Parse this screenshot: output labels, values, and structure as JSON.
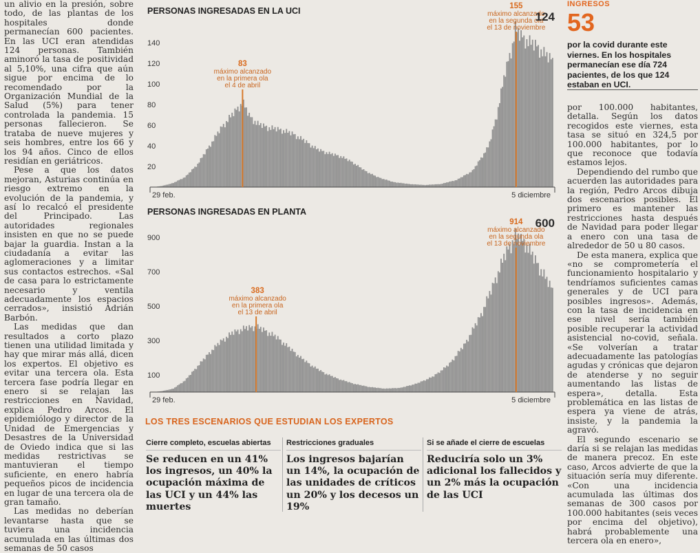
{
  "left_column": {
    "paragraphs": [
      "un alivio en la presión, sobre todo, de las plantas de los hospitales donde permanecían 600 pacientes. En las UCI eran atendidas 124 personas. También aminoró la tasa de positividad al 5,10%, una cifra que aún sigue por encima de lo recomendado por la Organización Mundial de la Salud (5%) para tener controlada la pandemia. 15 personas fallecieron. Se trataba de nueve mujeres y seis hombres, entre los 66 y los 94 años. Cinco de ellos residían en geriátricos.",
      "Pese a que los datos mejoran, Asturias continúa en riesgo extremo en la evolución de la pandemia, y así lo recalcó el presidente del Principado. Las autoridades regionales insisten en que no se puede bajar la guardia. Instan a la ciudadanía a evitar las aglomeraciones y a limitar sus contactos estrechos. «Sal de casa para lo estrictamente necesario y ventila adecuadamente los espacios cerrados», insistió Adrián Barbón.",
      "Las medidas que dan resultados a corto plazo tienen una utilidad limitada y hay que mirar más allá, dicen los expertos. El objetivo es evitar una tercera ola. Esta tercera fase podría llegar en enero si se relajan las restricciones en Navidad, explica Pedro Arcos. El epidemiólogo y director de la Unidad de Emergencias y Desastres de la Universidad de Oviedo indica que si las medidas restrictivas se mantuvieran el tiempo suficiente, en enero habría pequeños picos de incidencia en lugar de una tercera ola de gran tamaño.",
      "Las medidas no deberían levantarse hasta que se tuviera una incidencia acumulada en las últimas dos semanas de 50 casos"
    ]
  },
  "sidebar": {
    "label": "INGRESOS",
    "number": "53",
    "text": "por la covid durante este viernes. En los hospitales permanecían ese día 724 pacientes, de los que 124 estaban en UCI."
  },
  "right_column": {
    "paragraphs": [
      "por 100.000 habitantes, detalla. Según los datos recogidos este viernes, esta tasa se situó en 324,5 por 100.000 habitantes, por lo que reconoce que todavía estamos lejos.",
      "Dependiendo del rumbo que acuerden las autoridades para la región, Pedro Arcos dibuja dos escenarios posibles. El primero es mantener las restricciones hasta después de Navidad para poder llegar a enero con una tasa de alrededor de 50 u 80 casos.",
      "De esta manera, explica que «no se comprometería el funcionamiento hospitalario y tendríamos suficientes camas generales y de UCI para posibles ingresos». Además, con la tasa de incidencia en ese nivel sería también posible recuperar la actividad asistencial no-covid, señala. «Se volverían a tratar adecuadamente las patologías agudas y crónicas que dejaron de atenderse y no seguir aumentando las listas de espera», detalla. Esta problemática en las listas de espera ya viene de atrás, insiste, y la pandemia la agravó.",
      "El segundo escenario se daría si se relajan las medidas de manera precoz. En este caso, Arcos advierte de que la situación sería muy diferente. «Con una incidencia acumulada las últimas dos semanas de 300 casos por 100.000 habitantes (seis veces por encima del objetivo), habrá probablemente una tercera ola en enero»,"
    ]
  },
  "chart_data": [
    {
      "type": "bar",
      "title": "PERSONAS INGRESADAS EN LA UCI",
      "x_start_label": "29 feb.",
      "x_end_label": "5 diciembre",
      "yticks": [
        20,
        40,
        60,
        80,
        100,
        120,
        140
      ],
      "ylim": [
        0,
        160
      ],
      "current_value": "124",
      "peaks": [
        {
          "value": "83",
          "label": [
            "máximo alcanzado",
            "en la primera ola",
            "el 4 de abril"
          ],
          "pos": 0.224
        },
        {
          "value": "155",
          "label": [
            "máximo alcanzado",
            "en la segunda ola",
            "el 13 de noviembre"
          ],
          "pos": 0.907
        }
      ],
      "shape": [
        [
          0,
          0
        ],
        [
          0.02,
          1
        ],
        [
          0.05,
          4
        ],
        [
          0.08,
          10
        ],
        [
          0.11,
          22
        ],
        [
          0.14,
          40
        ],
        [
          0.17,
          58
        ],
        [
          0.2,
          72
        ],
        [
          0.224,
          83
        ],
        [
          0.24,
          70
        ],
        [
          0.26,
          62
        ],
        [
          0.29,
          58
        ],
        [
          0.32,
          56
        ],
        [
          0.35,
          52
        ],
        [
          0.38,
          45
        ],
        [
          0.41,
          37
        ],
        [
          0.44,
          33
        ],
        [
          0.47,
          30
        ],
        [
          0.5,
          24
        ],
        [
          0.53,
          16
        ],
        [
          0.56,
          10
        ],
        [
          0.6,
          5
        ],
        [
          0.64,
          3
        ],
        [
          0.68,
          2
        ],
        [
          0.72,
          3
        ],
        [
          0.76,
          7
        ],
        [
          0.8,
          16
        ],
        [
          0.84,
          40
        ],
        [
          0.86,
          70
        ],
        [
          0.88,
          110
        ],
        [
          0.9,
          140
        ],
        [
          0.907,
          155
        ],
        [
          0.92,
          148
        ],
        [
          0.94,
          142
        ],
        [
          0.96,
          138
        ],
        [
          0.98,
          130
        ],
        [
          1.0,
          124
        ]
      ]
    },
    {
      "type": "bar",
      "title": "PERSONAS INGRESADAS EN PLANTA",
      "x_start_label": "29 feb.",
      "x_end_label": "5 diciembre",
      "yticks": [
        100,
        300,
        500,
        700,
        900
      ],
      "ylim": [
        0,
        960
      ],
      "current_value": "600",
      "peaks": [
        {
          "value": "383",
          "label": [
            "máximo alcanzado",
            "en la primera ola",
            "el 13 de abril"
          ],
          "pos": 0.258
        },
        {
          "value": "914",
          "label": [
            "máximo alcanzado",
            "en la segunda ola",
            "el 13 de noviembre"
          ],
          "pos": 0.907
        }
      ],
      "shape": [
        [
          0,
          0
        ],
        [
          0.02,
          5
        ],
        [
          0.05,
          20
        ],
        [
          0.08,
          70
        ],
        [
          0.11,
          150
        ],
        [
          0.14,
          230
        ],
        [
          0.17,
          300
        ],
        [
          0.2,
          350
        ],
        [
          0.23,
          375
        ],
        [
          0.258,
          383
        ],
        [
          0.28,
          360
        ],
        [
          0.31,
          320
        ],
        [
          0.34,
          260
        ],
        [
          0.37,
          200
        ],
        [
          0.4,
          150
        ],
        [
          0.43,
          110
        ],
        [
          0.46,
          80
        ],
        [
          0.5,
          50
        ],
        [
          0.54,
          30
        ],
        [
          0.58,
          20
        ],
        [
          0.62,
          25
        ],
        [
          0.66,
          50
        ],
        [
          0.7,
          90
        ],
        [
          0.74,
          160
        ],
        [
          0.78,
          280
        ],
        [
          0.82,
          450
        ],
        [
          0.85,
          620
        ],
        [
          0.88,
          800
        ],
        [
          0.907,
          914
        ],
        [
          0.93,
          880
        ],
        [
          0.95,
          800
        ],
        [
          0.97,
          720
        ],
        [
          0.99,
          640
        ],
        [
          1.0,
          600
        ]
      ]
    }
  ],
  "scenarios": {
    "title": "LOS TRES ESCENARIOS QUE ESTUDIAN LOS EXPERTOS",
    "items": [
      {
        "heading": "Cierre completo, escuelas abiertas",
        "text": "Se reducen en un 41% los ingresos, un 40% la ocupación máxima de las UCI y un 44% las muertes"
      },
      {
        "heading": "Restricciones graduales",
        "text": "Los ingresos bajarían un 14%, la ocupación de las unidades de críticos un 20% y los decesos un 19%"
      },
      {
        "heading": "Si se añade el cierre de escuelas",
        "text": "Reduciría solo un 3% adicional los fallecidos y un 2% más la ocupación de las UCI"
      }
    ]
  },
  "colors": {
    "accent": "#e2661f",
    "bars": "#8f8f8f",
    "peak_line": "#d77a2c"
  }
}
